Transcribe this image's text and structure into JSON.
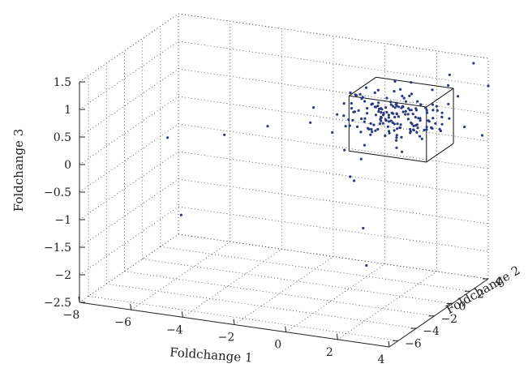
{
  "chart_data": {
    "type": "scatter3d",
    "title": "",
    "xlabel": "Foldchange 1",
    "ylabel": "Foldchange 2",
    "zlabel": "Foldchange 3",
    "xlim": [
      -8,
      4
    ],
    "ylim": [
      -7,
      4
    ],
    "zlim": [
      -2.5,
      1.5
    ],
    "grid": true,
    "colors": {
      "points": "#2b3a80",
      "axes": "#222222"
    },
    "x_ticks": [
      "-8",
      "-6",
      "-4",
      "-2",
      "0",
      "2",
      "4"
    ],
    "x_tick_values": [
      -8,
      -6,
      -4,
      -2,
      0,
      2,
      4
    ],
    "y_ticks": [
      "-6",
      "-4",
      "-2",
      "0",
      "2",
      "4"
    ],
    "y_tick_values": [
      -6,
      -4,
      -2,
      0,
      2,
      4
    ],
    "z_ticks": [
      "-2.5",
      "-2",
      "-1.5",
      "-1",
      "-0.5",
      "0",
      "0.5",
      "1",
      "1.5"
    ],
    "z_tick_values": [
      -2.5,
      -2,
      -1.5,
      -1,
      -0.5,
      0,
      0.5,
      1,
      1.5
    ],
    "box": {
      "x": [
        0,
        3
      ],
      "y": [
        0,
        3
      ],
      "z": [
        0,
        1
      ]
    },
    "cluster": {
      "center": [
        1.3,
        1.5,
        0.55
      ],
      "spread": [
        1.0,
        1.0,
        0.2
      ],
      "count": 170
    },
    "outliers": [
      {
        "x": -7.2,
        "y": 0.5,
        "z": -0.3
      },
      {
        "x": -6.5,
        "y": 0.0,
        "z": -1.6
      },
      {
        "x": -5.0,
        "y": 0.5,
        "z": -0.1
      },
      {
        "x": -3.5,
        "y": 1.0,
        "z": 0.1
      },
      {
        "x": -2.0,
        "y": 1.8,
        "z": 0.45
      },
      {
        "x": -2.3,
        "y": 2.3,
        "z": 0.1
      },
      {
        "x": -1.0,
        "y": 2.5,
        "z": 0.1
      },
      {
        "x": -0.7,
        "y": 1.5,
        "z": -0.2
      },
      {
        "x": -0.5,
        "y": 2.0,
        "z": -0.8
      },
      {
        "x": -0.3,
        "y": 1.0,
        "z": -0.6
      },
      {
        "x": -0.1,
        "y": 2.0,
        "z": 0.3
      },
      {
        "x": 0.2,
        "y": 1.0,
        "z": -1.5
      },
      {
        "x": 0.5,
        "y": 0.5,
        "z": -2.1
      },
      {
        "x": 3.0,
        "y": 3.5,
        "z": 0.8
      },
      {
        "x": 3.5,
        "y": 3.8,
        "z": 1.4
      },
      {
        "x": 3.8,
        "y": 3.9,
        "z": 0.1
      },
      {
        "x": 4.0,
        "y": 4.0,
        "z": 1.0
      },
      {
        "x": 2.5,
        "y": 4.0,
        "z": 1.1
      }
    ]
  }
}
